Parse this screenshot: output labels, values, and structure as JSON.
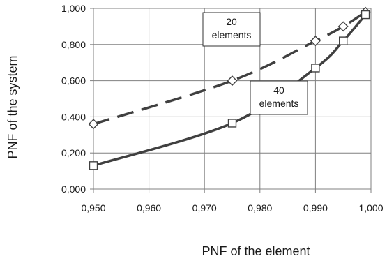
{
  "chart_data": {
    "type": "line",
    "xlabel": "PNF of the element",
    "ylabel": "PNF  of the system",
    "xlim": [
      0.95,
      1.0
    ],
    "ylim": [
      0.0,
      1.0
    ],
    "x_ticks": [
      "0,950",
      "0,960",
      "0,970",
      "0,980",
      "0,990",
      "1,000"
    ],
    "y_ticks": [
      "0,000",
      "0,200",
      "0,400",
      "0,600",
      "0,800",
      "1,000"
    ],
    "grid": true,
    "series": [
      {
        "name": "20 elements",
        "style": "dashed",
        "marker": "diamond",
        "color": "#404040",
        "x": [
          0.95,
          0.975,
          0.99,
          0.995,
          0.999
        ],
        "y": [
          0.36,
          0.6,
          0.82,
          0.9,
          0.98
        ]
      },
      {
        "name": "40 elements",
        "style": "solid",
        "marker": "square",
        "color": "#404040",
        "x": [
          0.95,
          0.975,
          0.99,
          0.995,
          0.999
        ],
        "y": [
          0.13,
          0.365,
          0.67,
          0.82,
          0.965
        ]
      }
    ],
    "annotations": [
      {
        "lines": [
          "20",
          "elements"
        ],
        "series": 0
      },
      {
        "lines": [
          "40",
          "elements"
        ],
        "series": 1
      }
    ]
  }
}
